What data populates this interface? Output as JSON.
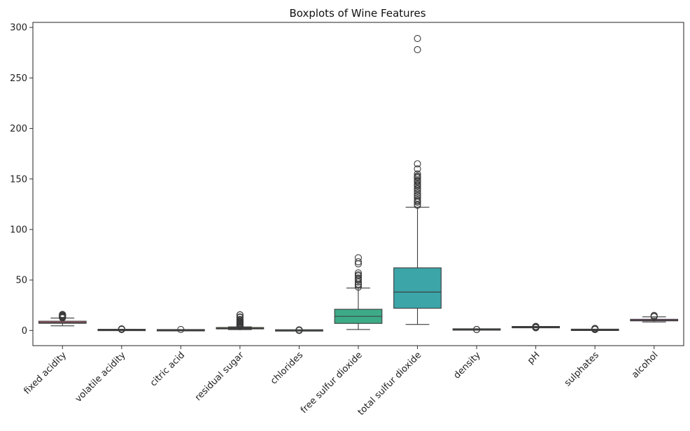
{
  "chart_data": {
    "type": "box",
    "title": "Boxplots of Wine Features",
    "xlabel": "",
    "ylabel": "",
    "ylim": [
      -15,
      305
    ],
    "y_ticks": [
      0,
      50,
      100,
      150,
      200,
      250,
      300
    ],
    "grid": false,
    "legend": "none",
    "categories": [
      "fixed acidity",
      "volatile acidity",
      "citric acid",
      "residual sugar",
      "chlorides",
      "free sulfur dioxide",
      "total sulfur dioxide",
      "density",
      "pH",
      "sulphates",
      "alcohol"
    ],
    "colors": [
      "#e1757f",
      "#d98a4e",
      "#b89b3e",
      "#9caa3e",
      "#5ab26a",
      "#3dab87",
      "#3ca5a8",
      "#41a0c6",
      "#8c8fe6",
      "#cb79e6",
      "#e36fc4"
    ],
    "stats": [
      {
        "whisker_low": 4.6,
        "q1": 7.1,
        "median": 7.9,
        "q3": 9.2,
        "whisker_high": 12.3,
        "outliers": [
          12.5,
          12.8,
          13.0,
          13.3,
          13.7,
          14.0,
          14.3,
          15.0,
          15.6,
          15.9
        ]
      },
      {
        "whisker_low": 0.12,
        "q1": 0.39,
        "median": 0.52,
        "q3": 0.64,
        "whisker_high": 1.01,
        "outliers": [
          1.04,
          1.09,
          1.13,
          1.18,
          1.24,
          1.33,
          1.58
        ]
      },
      {
        "whisker_low": 0.0,
        "q1": 0.09,
        "median": 0.26,
        "q3": 0.42,
        "whisker_high": 0.91,
        "outliers": [
          1.0
        ]
      },
      {
        "whisker_low": 0.9,
        "q1": 1.9,
        "median": 2.2,
        "q3": 2.6,
        "whisker_high": 3.6,
        "outliers": [
          3.8,
          4.2,
          4.6,
          5.1,
          5.5,
          6.0,
          6.5,
          7.0,
          7.8,
          8.3,
          8.8,
          9.5,
          10.5,
          11.0,
          12.9,
          13.4,
          15.4,
          15.5
        ]
      },
      {
        "whisker_low": 0.04,
        "q1": 0.07,
        "median": 0.08,
        "q3": 0.09,
        "whisker_high": 0.12,
        "outliers": [
          0.13,
          0.15,
          0.17,
          0.2,
          0.24,
          0.3,
          0.36,
          0.41,
          0.47,
          0.61
        ]
      },
      {
        "whisker_low": 1,
        "q1": 7,
        "median": 14,
        "q3": 21,
        "whisker_high": 42,
        "outliers": [
          43,
          45,
          46,
          48,
          50,
          51,
          52,
          54,
          55,
          57,
          66,
          68,
          72
        ]
      },
      {
        "whisker_low": 6,
        "q1": 22,
        "median": 38,
        "q3": 62,
        "whisker_high": 122,
        "outliers": [
          124,
          125,
          127,
          128,
          129,
          131,
          133,
          134,
          136,
          138,
          140,
          141,
          143,
          144,
          145,
          147,
          148,
          149,
          151,
          152,
          153,
          155,
          160,
          165,
          278,
          289
        ]
      },
      {
        "whisker_low": 0.992,
        "q1": 0.9956,
        "median": 0.9968,
        "q3": 0.9978,
        "whisker_high": 1.001,
        "outliers": [
          0.99,
          1.003
        ]
      },
      {
        "whisker_low": 2.92,
        "q1": 3.21,
        "median": 3.31,
        "q3": 3.4,
        "whisker_high": 3.68,
        "outliers": [
          2.74,
          2.86,
          2.88,
          3.69,
          3.72,
          3.75,
          3.78,
          3.85,
          3.9,
          4.01
        ]
      },
      {
        "whisker_low": 0.33,
        "q1": 0.55,
        "median": 0.62,
        "q3": 0.73,
        "whisker_high": 0.99,
        "outliers": [
          1.02,
          1.05,
          1.1,
          1.17,
          1.26,
          1.36,
          1.59,
          1.62,
          1.95,
          2.0
        ]
      },
      {
        "whisker_low": 8.4,
        "q1": 9.5,
        "median": 10.2,
        "q3": 11.1,
        "whisker_high": 13.5,
        "outliers": [
          13.6,
          14.0,
          14.9
        ]
      }
    ]
  }
}
